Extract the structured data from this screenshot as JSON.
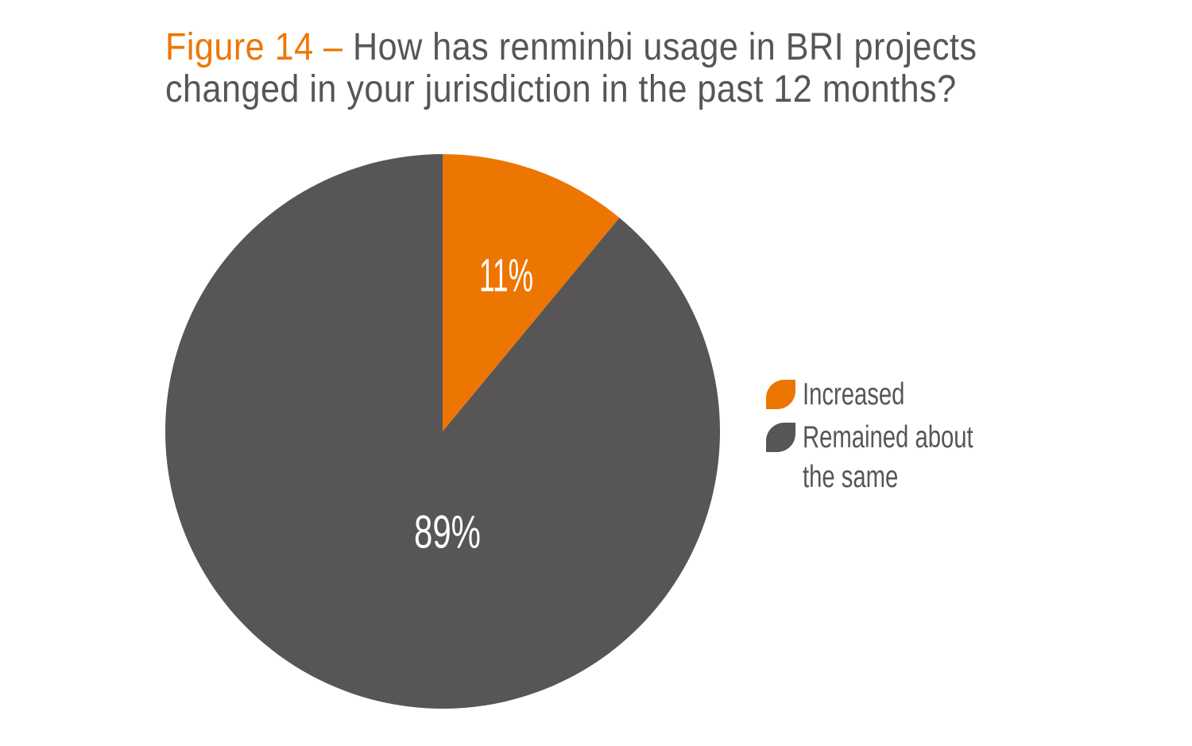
{
  "page": {
    "background": "#FFFFFF"
  },
  "colors": {
    "accent_orange": "#ED7603",
    "chart_gray": "#575556",
    "title_text": "#575656",
    "value_label_white": "#FFFFFF"
  },
  "figure": {
    "title": {
      "prefix": "Figure 14 –",
      "lines": [
        "How has renminbi usage in BRI projects",
        "changed in your jurisdiction in the past 12 months?"
      ],
      "prefix_color": "#ED7603",
      "text_color": "#575656"
    }
  },
  "legend": {
    "position": "right",
    "items": [
      {
        "label": "Increased",
        "color": "#ED7603"
      },
      {
        "label": "Remained about the same",
        "color": "#575556"
      }
    ]
  },
  "chart_data": {
    "type": "pie",
    "title": "Figure 14 – How has renminbi usage in BRI projects changed in your jurisdiction in the past 12 months?",
    "categories": [
      "Increased",
      "Remained about the same"
    ],
    "values": [
      11,
      89
    ],
    "colors": [
      "#ED7603",
      "#575556"
    ],
    "value_labels": [
      "11%",
      "89%"
    ],
    "value_label_color": "#FFFFFF",
    "start_angle_deg": 0,
    "direction": "clockwise",
    "grid": false,
    "legend_position": "right"
  }
}
